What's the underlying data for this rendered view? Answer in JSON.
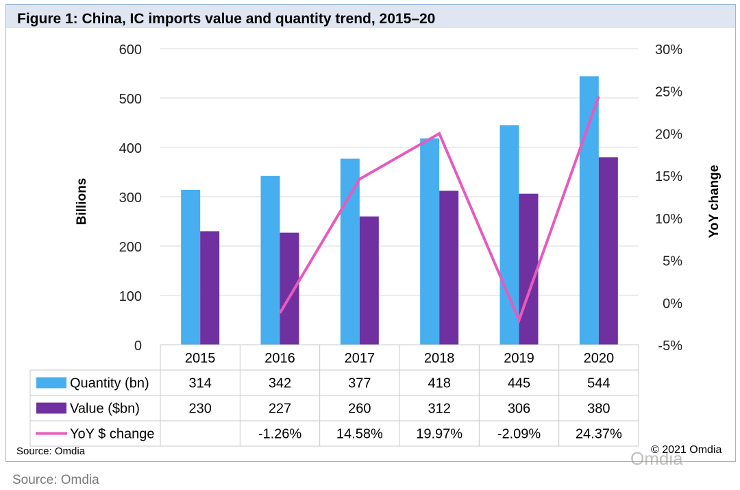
{
  "header": {
    "title": "Figure 1: China, IC imports value and quantity trend, 2015–20"
  },
  "footer": {
    "source_inner": "Source: Omdia",
    "copyright": "© 2021 Omdia",
    "watermark": "Omdia",
    "source_outer": "Source: Omdia"
  },
  "chart_data": {
    "type": "bar",
    "title": "Figure 1: China, IC imports value and quantity trend, 2015–20",
    "categories": [
      "2015",
      "2016",
      "2017",
      "2018",
      "2019",
      "2020"
    ],
    "ylabel": "Billions",
    "y2label": "YoY change",
    "ylim": [
      0,
      600
    ],
    "yticks": [
      "0",
      "100",
      "200",
      "300",
      "400",
      "500",
      "600"
    ],
    "y2lim": [
      -0.05,
      0.3
    ],
    "y2ticks": [
      "-5%",
      "0%",
      "5%",
      "10%",
      "15%",
      "20%",
      "25%",
      "30%"
    ],
    "grid": true,
    "series": [
      {
        "name": "Quantity (bn)",
        "type": "bar",
        "axis": "left",
        "color": "#47aef0",
        "values": [
          314,
          342,
          377,
          418,
          445,
          544
        ],
        "labels": [
          "314",
          "342",
          "377",
          "418",
          "445",
          "544"
        ]
      },
      {
        "name": "Value ($bn)",
        "type": "bar",
        "axis": "left",
        "color": "#7030a0",
        "values": [
          230,
          227,
          260,
          312,
          306,
          380
        ],
        "labels": [
          "230",
          "227",
          "260",
          "312",
          "306",
          "380"
        ]
      },
      {
        "name": "YoY $ change",
        "type": "line",
        "axis": "right",
        "color": "#e65bbd",
        "values": [
          null,
          -0.0126,
          0.1458,
          0.1997,
          -0.0209,
          0.2437
        ],
        "labels": [
          "",
          "-1.26%",
          "14.58%",
          "19.97%",
          "-2.09%",
          "24.37%"
        ]
      }
    ]
  }
}
